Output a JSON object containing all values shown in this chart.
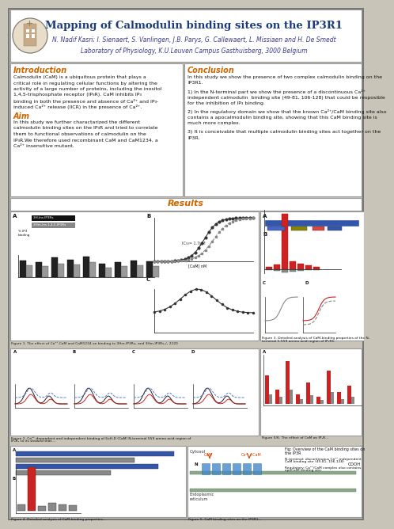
{
  "title": "Mapping of Calmodulin binding sites on the IP3R1",
  "authors": "N. Nadif Kasri; I. Sienaert, S. Vanlingen, J.B. Parys, G. Callewaert, L. Missiaen and H. De Smedt",
  "lab": "Laboratory of Physiology, K.U.Leuven Campus Gasthuisberg, 3000 Belgium",
  "title_color": "#1a3a7a",
  "authors_color": "#3a3a8a",
  "lab_color": "#3a3a8a",
  "intro_title": "Introduction",
  "aim_title": "Aim",
  "section_title_color": "#cc6600",
  "conclusion_title": "Conclusion",
  "results_title": "Results",
  "results_color": "#cc6600",
  "outer_bg": "#c8c4b8",
  "panel_bg": "#ffffff",
  "border_color": "#999999",
  "intro_lines": [
    "Calmodulin (CaM) is a ubiquitous protein that plays a",
    "critical role in regulating cellular functions by altering the",
    "activity of a large number of proteins, including the inositol",
    "1,4,5-trisphosphate receptor (IP₃R). CaM inhibits IP₃",
    "binding in both the presence and absence of Ca²⁺ and IP₃-",
    "induced Ca²⁺ release (IICR) in the presence of Ca²⁺."
  ],
  "aim_lines": [
    "In this study we further charactarized the different",
    "calmodulin binding sites on the IP₃R and tried to correlate",
    "them to functional observations of calmodulin on the",
    "IP₃R.We therefore used recombinant CaM and CaM1234, a",
    "Ca²⁺ insensitive mutant."
  ],
  "concl_lines1": [
    "In this study we show the presence of two complex calmodulin binding on the",
    "IP3R1."
  ],
  "concl_lines2": [
    "1) In the N-terminal part we show the presence of a discontinuous Ca²⁺",
    "independent calmodulin  binding site (49-81, 106-128) that could be resposible",
    "for the inhibition of IP₃ binding."
  ],
  "concl_lines3": [
    "2) In the regulatory domain we show that the known Ca²⁺/CaM binding site also",
    "contains a apocalmodulin binding site, showing that this CaM binding site is",
    "much more complex."
  ],
  "concl_lines4": [
    "3) It is conceivable that multiple calmodulin binding sites act together on the",
    "IP3R."
  ]
}
